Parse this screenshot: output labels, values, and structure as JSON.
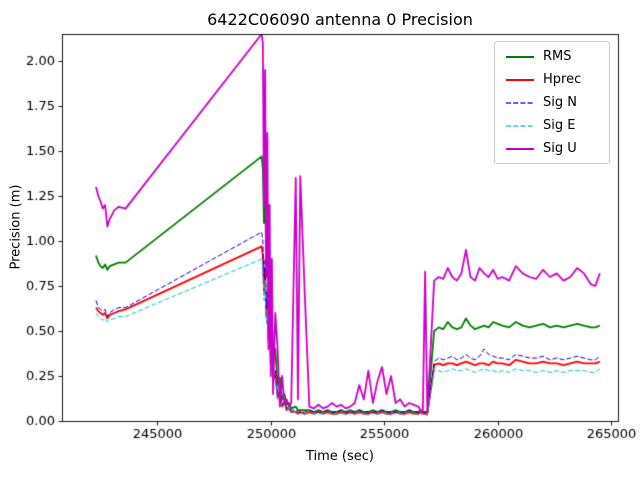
{
  "figure": {
    "background": "#ffffff",
    "text_color": "#000000"
  },
  "chart_data": {
    "type": "line",
    "title": "6422C06090 antenna 0 Precision",
    "xlabel": "Time (sec)",
    "ylabel": "Precision (m)",
    "xlim": [
      240800,
      265300
    ],
    "ylim": [
      0,
      2.15
    ],
    "grid": false,
    "legend_position": "upper right",
    "xticks": [
      245000,
      250000,
      255000,
      260000,
      265000
    ],
    "xtick_labels": [
      "245000",
      "250000",
      "255000",
      "260000",
      "265000"
    ],
    "yticks": [
      0,
      0.25,
      0.5,
      0.75,
      1.0,
      1.25,
      1.5,
      1.75,
      2.0
    ],
    "ytick_labels": [
      "0.00",
      "0.25",
      "0.50",
      "0.75",
      "1.00",
      "1.25",
      "1.50",
      "1.75",
      "2.00"
    ],
    "x": [
      242300,
      242400,
      242500,
      242600,
      242700,
      242800,
      242900,
      243100,
      243300,
      243600,
      249600,
      249650,
      249700,
      249750,
      249800,
      249850,
      249900,
      249950,
      250000,
      250050,
      250100,
      250200,
      250300,
      250400,
      250500,
      250600,
      250700,
      250800,
      250900,
      251100,
      251200,
      251300,
      251500,
      251700,
      251900,
      252100,
      252300,
      252500,
      252700,
      252900,
      253100,
      253300,
      253500,
      253700,
      253900,
      254100,
      254300,
      254500,
      254700,
      254900,
      255100,
      255300,
      255500,
      255700,
      255900,
      256100,
      256300,
      256500,
      256600,
      256700,
      256800,
      256900,
      257200,
      257400,
      257600,
      257800,
      258000,
      258200,
      258400,
      258600,
      258800,
      259000,
      259200,
      259400,
      259600,
      259800,
      260000,
      260200,
      260500,
      260800,
      261100,
      261400,
      261700,
      262000,
      262300,
      262600,
      262900,
      263200,
      263500,
      263800,
      264100,
      264300,
      264500
    ],
    "series": [
      {
        "name": "RMS",
        "color": "#008000",
        "style": "solid",
        "width": 1.8,
        "values": [
          0.92,
          0.88,
          0.86,
          0.85,
          0.87,
          0.84,
          0.86,
          0.87,
          0.88,
          0.88,
          1.47,
          1.4,
          1.1,
          1.28,
          0.88,
          1.02,
          0.68,
          0.78,
          0.48,
          0.58,
          0.34,
          0.4,
          0.2,
          0.24,
          0.12,
          0.15,
          0.09,
          0.1,
          0.07,
          0.08,
          0.06,
          0.06,
          0.06,
          0.06,
          0.05,
          0.06,
          0.05,
          0.06,
          0.05,
          0.05,
          0.06,
          0.05,
          0.06,
          0.05,
          0.06,
          0.05,
          0.05,
          0.06,
          0.05,
          0.06,
          0.05,
          0.05,
          0.06,
          0.05,
          0.05,
          0.06,
          0.05,
          0.05,
          0.06,
          0.05,
          0.05,
          0.05,
          0.5,
          0.52,
          0.51,
          0.55,
          0.52,
          0.51,
          0.52,
          0.57,
          0.53,
          0.51,
          0.52,
          0.53,
          0.52,
          0.55,
          0.54,
          0.53,
          0.52,
          0.55,
          0.53,
          0.52,
          0.53,
          0.54,
          0.52,
          0.53,
          0.52,
          0.53,
          0.54,
          0.53,
          0.52,
          0.52,
          0.53
        ]
      },
      {
        "name": "Hprec",
        "color": "#ff0000",
        "style": "solid",
        "width": 1.8,
        "values": [
          0.63,
          0.61,
          0.6,
          0.59,
          0.6,
          0.57,
          0.59,
          0.6,
          0.61,
          0.62,
          0.97,
          0.92,
          0.72,
          0.84,
          0.58,
          0.66,
          0.44,
          0.5,
          0.31,
          0.37,
          0.22,
          0.26,
          0.13,
          0.16,
          0.08,
          0.1,
          0.06,
          0.07,
          0.05,
          0.05,
          0.04,
          0.05,
          0.04,
          0.05,
          0.04,
          0.05,
          0.04,
          0.05,
          0.04,
          0.04,
          0.05,
          0.04,
          0.05,
          0.04,
          0.05,
          0.04,
          0.04,
          0.05,
          0.04,
          0.05,
          0.04,
          0.04,
          0.05,
          0.04,
          0.04,
          0.05,
          0.04,
          0.04,
          0.05,
          0.04,
          0.04,
          0.04,
          0.31,
          0.32,
          0.31,
          0.32,
          0.32,
          0.31,
          0.32,
          0.33,
          0.32,
          0.31,
          0.32,
          0.32,
          0.31,
          0.33,
          0.32,
          0.32,
          0.31,
          0.34,
          0.33,
          0.32,
          0.32,
          0.33,
          0.32,
          0.32,
          0.31,
          0.32,
          0.33,
          0.32,
          0.32,
          0.32,
          0.33
        ]
      },
      {
        "name": "Sig N",
        "color": "#0000ff",
        "style": "dashed",
        "width": 1.0,
        "values": [
          0.67,
          0.63,
          0.62,
          0.61,
          0.62,
          0.58,
          0.6,
          0.62,
          0.63,
          0.63,
          1.05,
          1.0,
          0.78,
          0.9,
          0.63,
          0.72,
          0.48,
          0.55,
          0.34,
          0.4,
          0.24,
          0.28,
          0.14,
          0.17,
          0.09,
          0.11,
          0.07,
          0.08,
          0.06,
          0.06,
          0.05,
          0.05,
          0.05,
          0.06,
          0.05,
          0.05,
          0.05,
          0.06,
          0.05,
          0.05,
          0.06,
          0.05,
          0.05,
          0.05,
          0.06,
          0.05,
          0.05,
          0.05,
          0.05,
          0.06,
          0.05,
          0.05,
          0.05,
          0.05,
          0.05,
          0.06,
          0.05,
          0.05,
          0.05,
          0.05,
          0.05,
          0.05,
          0.33,
          0.35,
          0.34,
          0.35,
          0.36,
          0.34,
          0.35,
          0.37,
          0.35,
          0.34,
          0.36,
          0.4,
          0.37,
          0.36,
          0.35,
          0.35,
          0.34,
          0.37,
          0.36,
          0.35,
          0.35,
          0.36,
          0.34,
          0.35,
          0.34,
          0.35,
          0.36,
          0.35,
          0.34,
          0.34,
          0.36
        ]
      },
      {
        "name": "Sig E",
        "color": "#00cccc",
        "style": "dashed",
        "width": 1.0,
        "values": [
          0.6,
          0.58,
          0.57,
          0.56,
          0.57,
          0.55,
          0.56,
          0.57,
          0.58,
          0.58,
          0.9,
          0.86,
          0.67,
          0.78,
          0.54,
          0.62,
          0.41,
          0.47,
          0.29,
          0.35,
          0.21,
          0.24,
          0.12,
          0.15,
          0.08,
          0.09,
          0.06,
          0.07,
          0.05,
          0.05,
          0.04,
          0.04,
          0.04,
          0.04,
          0.04,
          0.04,
          0.04,
          0.04,
          0.04,
          0.04,
          0.04,
          0.04,
          0.04,
          0.04,
          0.04,
          0.04,
          0.04,
          0.04,
          0.04,
          0.04,
          0.04,
          0.04,
          0.04,
          0.04,
          0.04,
          0.04,
          0.04,
          0.04,
          0.04,
          0.04,
          0.03,
          0.03,
          0.28,
          0.28,
          0.27,
          0.28,
          0.29,
          0.28,
          0.28,
          0.29,
          0.28,
          0.27,
          0.28,
          0.29,
          0.28,
          0.28,
          0.27,
          0.28,
          0.27,
          0.29,
          0.28,
          0.28,
          0.27,
          0.28,
          0.27,
          0.28,
          0.27,
          0.28,
          0.28,
          0.28,
          0.27,
          0.27,
          0.29
        ]
      },
      {
        "name": "Sig U",
        "color": "#cc00cc",
        "style": "solid",
        "width": 1.8,
        "values": [
          1.3,
          1.25,
          1.22,
          1.18,
          1.2,
          1.08,
          1.12,
          1.17,
          1.19,
          1.18,
          2.15,
          2.1,
          1.2,
          1.95,
          0.8,
          1.6,
          0.4,
          1.2,
          0.25,
          0.9,
          0.15,
          0.6,
          0.4,
          0.08,
          0.25,
          0.1,
          0.12,
          0.08,
          0.1,
          1.35,
          0.12,
          1.36,
          0.7,
          0.08,
          0.07,
          0.09,
          0.07,
          0.08,
          0.1,
          0.08,
          0.09,
          0.07,
          0.08,
          0.1,
          0.2,
          0.12,
          0.28,
          0.1,
          0.22,
          0.3,
          0.15,
          0.25,
          0.1,
          0.12,
          0.08,
          0.1,
          0.09,
          0.08,
          0.06,
          0.05,
          0.83,
          0.05,
          0.78,
          0.8,
          0.79,
          0.85,
          0.8,
          0.78,
          0.82,
          0.95,
          0.8,
          0.78,
          0.85,
          0.82,
          0.8,
          0.84,
          0.79,
          0.8,
          0.78,
          0.86,
          0.82,
          0.8,
          0.79,
          0.84,
          0.8,
          0.82,
          0.78,
          0.8,
          0.85,
          0.82,
          0.76,
          0.75,
          0.82
        ]
      }
    ]
  }
}
